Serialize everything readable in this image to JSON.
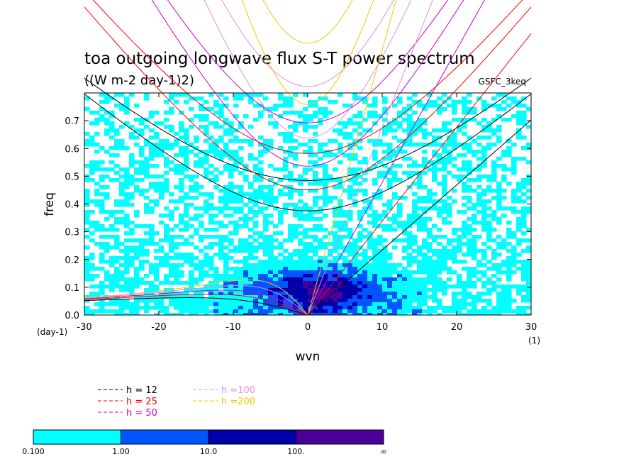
{
  "chart_data": {
    "type": "heatmap",
    "title": "toa outgoing longwave flux S-T power spectrum",
    "subtitle": "((W m-2 day-1)2)",
    "model_label": "GSFC_3keq",
    "xlabel": "wvn",
    "ylabel": "freq",
    "x_unit": "(1)",
    "y_unit": "(day-1)",
    "xlim": [
      -30,
      30
    ],
    "ylim": [
      0,
      0.8
    ],
    "xticks": [
      "-30",
      "-20",
      "-10",
      "0",
      "10",
      "20",
      "30"
    ],
    "yticks": [
      "0.0",
      "0.1",
      "0.2",
      "0.3",
      "0.4",
      "0.5",
      "0.6",
      "0.7"
    ],
    "contour_levels": [
      "0.100",
      "1.00",
      "10.0",
      "100.",
      "∞"
    ],
    "level_colors": [
      "#00ffff",
      "#0055ff",
      "#0000aa",
      "#4b0099"
    ],
    "dispersion_curves": [
      {
        "label": "h = 12",
        "h": 12,
        "color": "#000000"
      },
      {
        "label": "h = 25",
        "h": 25,
        "color": "#ff0000"
      },
      {
        "label": "h = 50",
        "h": 50,
        "color": "#cc00cc"
      },
      {
        "label": "h =100",
        "h": 100,
        "color": "#e08ee0"
      },
      {
        "label": "h =200",
        "h": 200,
        "color": "#f0c800"
      }
    ]
  }
}
